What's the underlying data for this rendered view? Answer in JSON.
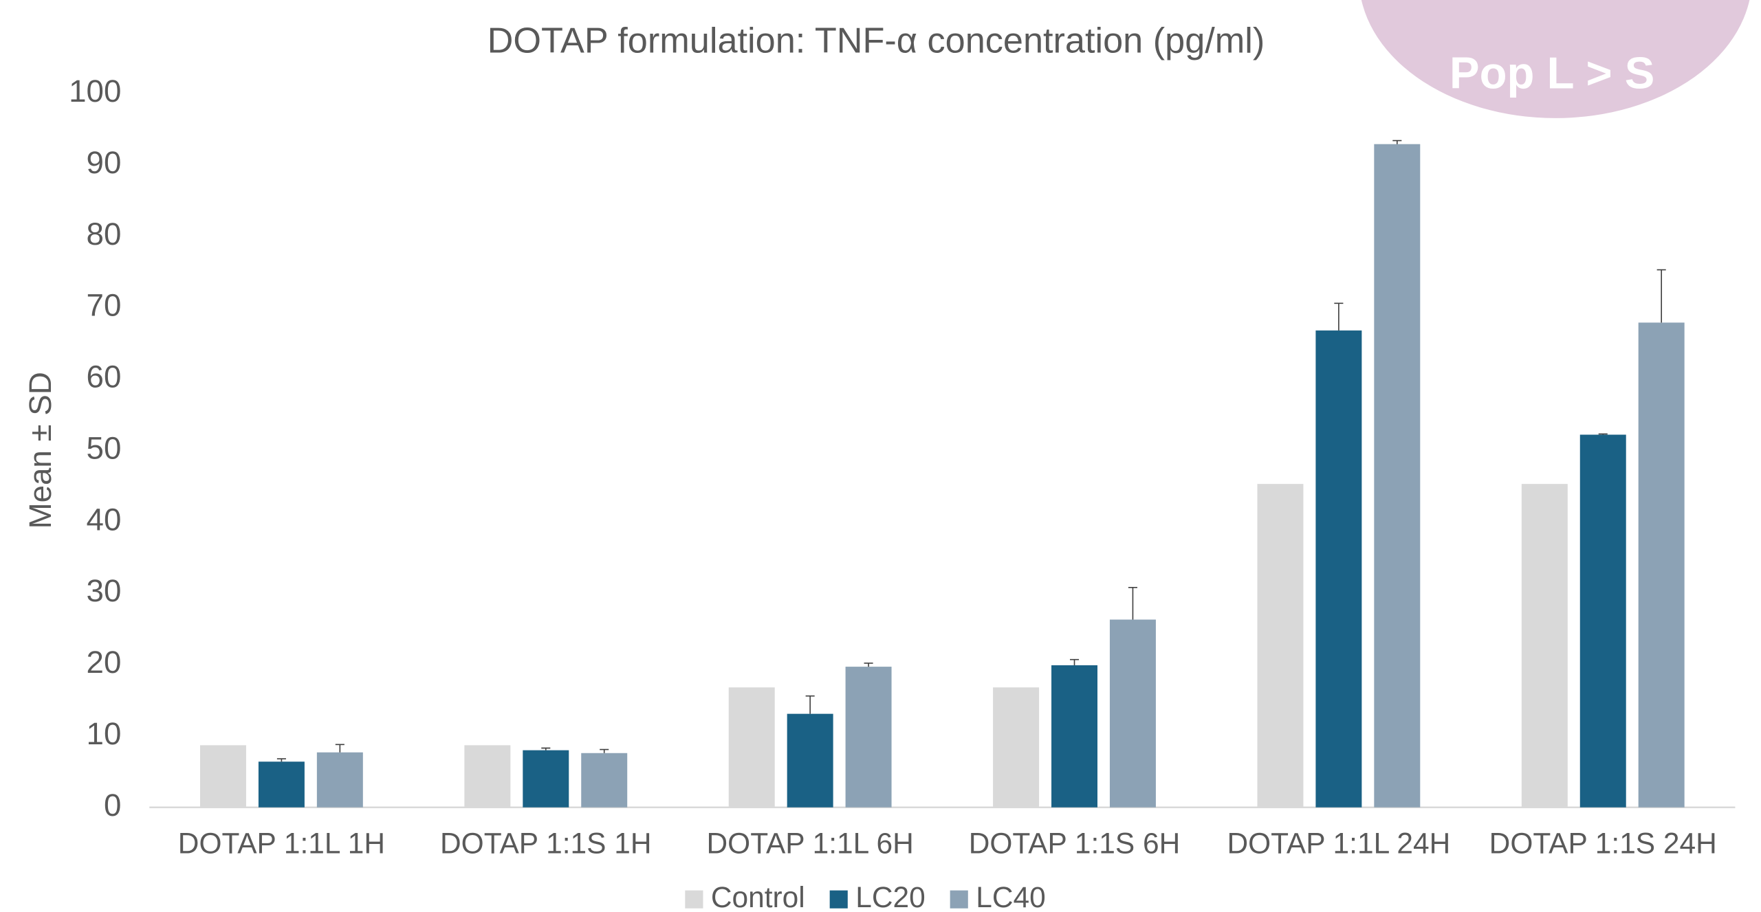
{
  "chart_data": {
    "type": "bar",
    "title": "DOTAP formulation: TNF-α concentration (pg/ml)",
    "y_label": "Mean ± SD",
    "annotation": "Pop L > S",
    "categories": [
      "DOTAP 1:1L 1H",
      "DOTAP 1:1S 1H",
      "DOTAP 1:1L 6H",
      "DOTAP 1:1S 6H",
      "DOTAP 1:1L 24H",
      "DOTAP 1:1S 24H"
    ],
    "series": [
      {
        "name": "Control",
        "color": "#d9d9d9",
        "values": [
          8.7,
          8.7,
          16.8,
          16.8,
          45.3,
          45.3
        ]
      },
      {
        "name": "LC20",
        "color": "#1a6185",
        "values": [
          6.4,
          8.0,
          13.1,
          19.9,
          66.8,
          52.2
        ],
        "errors": [
          0.4,
          0.3,
          2.5,
          0.8,
          3.8,
          0.1
        ]
      },
      {
        "name": "LC40",
        "color": "#8ca2b5",
        "values": [
          7.7,
          7.6,
          19.7,
          26.3,
          92.9,
          67.9
        ],
        "errors": [
          1.1,
          0.5,
          0.5,
          4.5,
          0.5,
          7.4
        ]
      }
    ],
    "ylim": [
      0,
      100
    ],
    "yticks": [
      0,
      10,
      20,
      30,
      40,
      50,
      60,
      70,
      80,
      90,
      100
    ],
    "grid": false,
    "legend": "bottom"
  }
}
